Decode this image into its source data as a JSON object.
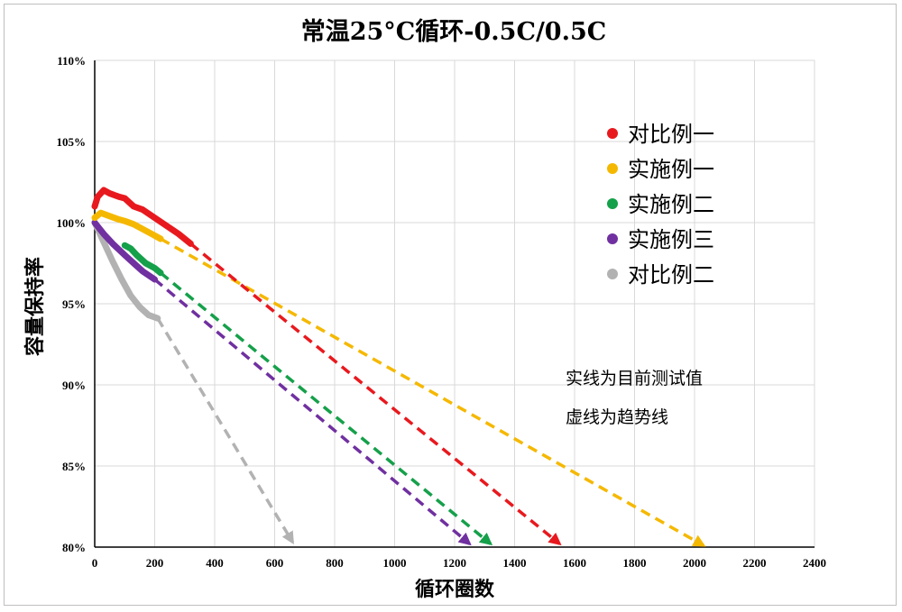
{
  "chart_data": {
    "type": "line",
    "title": "常温25°C循环-0.5C/0.5C",
    "xlabel": "循环圈数",
    "ylabel": "容量保持率",
    "xlim": [
      0,
      2400
    ],
    "ylim": [
      80,
      110
    ],
    "x_ticks": [
      "0",
      "200",
      "400",
      "600",
      "800",
      "1000",
      "1200",
      "1400",
      "1600",
      "1800",
      "2000",
      "2200",
      "2400"
    ],
    "y_ticks": [
      "80%",
      "85%",
      "90%",
      "95%",
      "100%",
      "105%",
      "110%"
    ],
    "grid": true,
    "legend_position": "right",
    "notes": [
      "实线为目前测试值",
      "虚线为趋势线"
    ],
    "series": [
      {
        "name": "对比例一",
        "color": "#e8191e",
        "measured": [
          [
            0,
            101
          ],
          [
            10,
            101.6
          ],
          [
            30,
            102
          ],
          [
            50,
            101.8
          ],
          [
            80,
            101.6
          ],
          [
            100,
            101.5
          ],
          [
            130,
            101
          ],
          [
            160,
            100.8
          ],
          [
            200,
            100.3
          ],
          [
            240,
            99.8
          ],
          [
            280,
            99.3
          ],
          [
            320,
            98.7
          ]
        ],
        "trend": [
          [
            320,
            98.7
          ],
          [
            1550,
            80.2
          ]
        ]
      },
      {
        "name": "实施例一",
        "color": "#f5b800",
        "measured": [
          [
            0,
            100.3
          ],
          [
            20,
            100.6
          ],
          [
            50,
            100.4
          ],
          [
            80,
            100.2
          ],
          [
            100,
            100.1
          ],
          [
            130,
            99.9
          ],
          [
            160,
            99.6
          ],
          [
            190,
            99.3
          ],
          [
            220,
            99
          ]
        ],
        "trend": [
          [
            220,
            99
          ],
          [
            2030,
            80.1
          ]
        ]
      },
      {
        "name": "实施例二",
        "color": "#15a04a",
        "measured": [
          [
            100,
            98.6
          ],
          [
            120,
            98.4
          ],
          [
            140,
            98
          ],
          [
            170,
            97.5
          ],
          [
            200,
            97.2
          ],
          [
            220,
            96.9
          ]
        ],
        "trend": [
          [
            220,
            96.9
          ],
          [
            1320,
            80.2
          ]
        ]
      },
      {
        "name": "实施例三",
        "color": "#7030a0",
        "measured": [
          [
            0,
            100
          ],
          [
            30,
            99.3
          ],
          [
            60,
            98.7
          ],
          [
            100,
            98
          ],
          [
            130,
            97.5
          ],
          [
            160,
            97
          ],
          [
            200,
            96.5
          ]
        ],
        "trend": [
          [
            200,
            96.5
          ],
          [
            1250,
            80.2
          ]
        ]
      },
      {
        "name": "对比例二",
        "color": "#b2b2b2",
        "measured": [
          [
            0,
            100
          ],
          [
            30,
            98.8
          ],
          [
            60,
            97.6
          ],
          [
            90,
            96.5
          ],
          [
            120,
            95.5
          ],
          [
            150,
            94.8
          ],
          [
            180,
            94.3
          ],
          [
            210,
            94.1
          ]
        ],
        "trend": [
          [
            210,
            94.1
          ],
          [
            660,
            80.3
          ]
        ]
      }
    ]
  }
}
